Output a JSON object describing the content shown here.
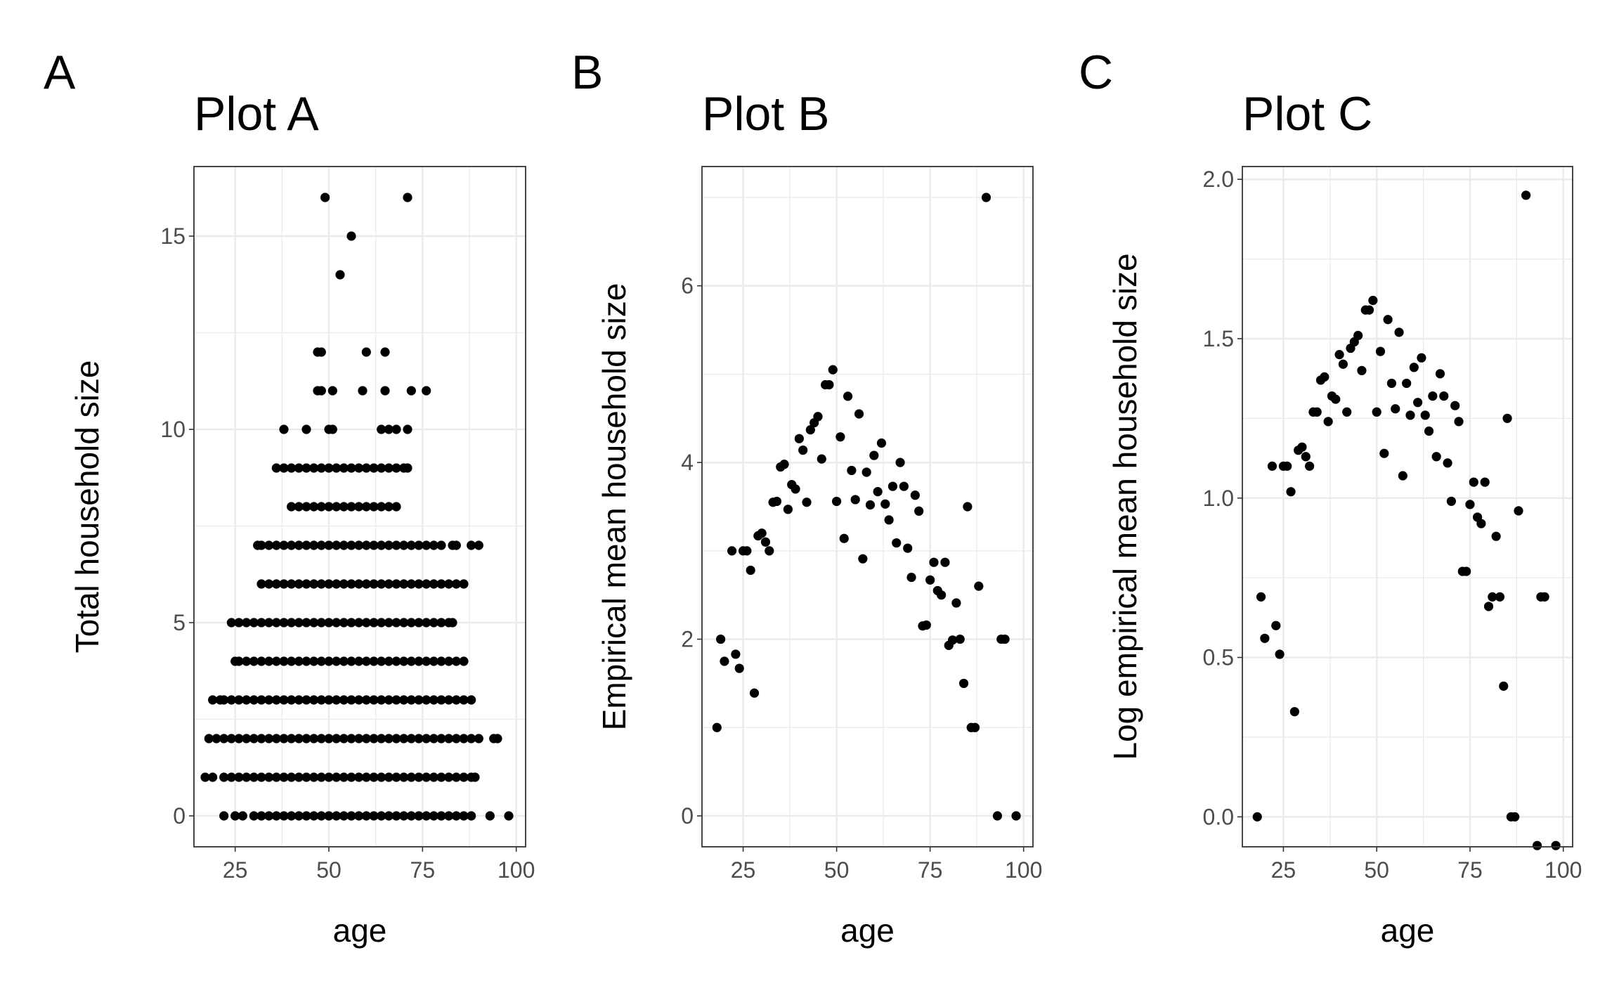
{
  "chart_data": [
    {
      "type": "scatter",
      "tag": "A",
      "title": "Plot A",
      "xlabel": "age",
      "ylabel": "Total household size",
      "color": "#000000",
      "grid": true,
      "xlim": [
        14,
        102.5
      ],
      "ylim": [
        -0.8,
        16.8
      ],
      "xticks": [
        25,
        50,
        75,
        100
      ],
      "yticks": [
        0,
        5,
        10,
        15
      ],
      "x": [
        22,
        25,
        27,
        30,
        32,
        34,
        36,
        38,
        40,
        42,
        44,
        46,
        48,
        50,
        52,
        54,
        56,
        58,
        60,
        62,
        64,
        66,
        68,
        70,
        72,
        74,
        76,
        78,
        80,
        82,
        84,
        86,
        88,
        93,
        98,
        17,
        19,
        22,
        24,
        26,
        28,
        30,
        32,
        34,
        36,
        38,
        40,
        42,
        44,
        46,
        48,
        50,
        52,
        54,
        56,
        58,
        60,
        62,
        64,
        66,
        68,
        70,
        72,
        74,
        76,
        78,
        80,
        82,
        84,
        86,
        88,
        89,
        18,
        20,
        22,
        24,
        26,
        28,
        30,
        32,
        34,
        36,
        38,
        40,
        42,
        44,
        46,
        48,
        50,
        52,
        54,
        56,
        58,
        60,
        62,
        64,
        66,
        68,
        70,
        72,
        74,
        76,
        78,
        80,
        82,
        84,
        86,
        88,
        90,
        94,
        95,
        19,
        21,
        22,
        24,
        26,
        28,
        30,
        32,
        34,
        36,
        38,
        40,
        42,
        44,
        46,
        48,
        50,
        52,
        54,
        56,
        58,
        60,
        62,
        64,
        66,
        68,
        70,
        72,
        74,
        76,
        78,
        80,
        82,
        84,
        86,
        88,
        25,
        26,
        28,
        30,
        32,
        34,
        36,
        38,
        40,
        42,
        44,
        46,
        48,
        50,
        52,
        54,
        56,
        58,
        60,
        62,
        64,
        66,
        68,
        70,
        72,
        74,
        76,
        78,
        80,
        82,
        84,
        86,
        24,
        26,
        28,
        30,
        32,
        34,
        36,
        38,
        40,
        42,
        44,
        46,
        48,
        50,
        52,
        54,
        56,
        58,
        60,
        62,
        64,
        66,
        68,
        70,
        72,
        74,
        76,
        78,
        80,
        82,
        83,
        32,
        34,
        36,
        38,
        40,
        42,
        44,
        46,
        48,
        50,
        52,
        54,
        56,
        58,
        60,
        62,
        64,
        66,
        68,
        70,
        72,
        74,
        76,
        78,
        80,
        82,
        84,
        86,
        31,
        32,
        34,
        36,
        38,
        40,
        42,
        44,
        46,
        48,
        50,
        52,
        54,
        56,
        58,
        60,
        62,
        64,
        66,
        68,
        70,
        72,
        74,
        76,
        78,
        80,
        83,
        84,
        88,
        90,
        40,
        42,
        44,
        46,
        48,
        50,
        52,
        54,
        56,
        58,
        60,
        62,
        64,
        66,
        68,
        36,
        38,
        40,
        42,
        44,
        46,
        48,
        50,
        52,
        54,
        56,
        58,
        60,
        62,
        64,
        66,
        68,
        70,
        71,
        38,
        44,
        50,
        51,
        64,
        66,
        68,
        71,
        47,
        48,
        51,
        59,
        65,
        72,
        76,
        47,
        48,
        60,
        65,
        53,
        56,
        49,
        71
      ],
      "y": [
        0,
        0,
        0,
        0,
        0,
        0,
        0,
        0,
        0,
        0,
        0,
        0,
        0,
        0,
        0,
        0,
        0,
        0,
        0,
        0,
        0,
        0,
        0,
        0,
        0,
        0,
        0,
        0,
        0,
        0,
        0,
        0,
        0,
        0,
        0,
        1,
        1,
        1,
        1,
        1,
        1,
        1,
        1,
        1,
        1,
        1,
        1,
        1,
        1,
        1,
        1,
        1,
        1,
        1,
        1,
        1,
        1,
        1,
        1,
        1,
        1,
        1,
        1,
        1,
        1,
        1,
        1,
        1,
        1,
        1,
        1,
        1,
        2,
        2,
        2,
        2,
        2,
        2,
        2,
        2,
        2,
        2,
        2,
        2,
        2,
        2,
        2,
        2,
        2,
        2,
        2,
        2,
        2,
        2,
        2,
        2,
        2,
        2,
        2,
        2,
        2,
        2,
        2,
        2,
        2,
        2,
        2,
        2,
        2,
        2,
        2,
        3,
        3,
        3,
        3,
        3,
        3,
        3,
        3,
        3,
        3,
        3,
        3,
        3,
        3,
        3,
        3,
        3,
        3,
        3,
        3,
        3,
        3,
        3,
        3,
        3,
        3,
        3,
        3,
        3,
        3,
        3,
        3,
        3,
        3,
        3,
        3,
        4,
        4,
        4,
        4,
        4,
        4,
        4,
        4,
        4,
        4,
        4,
        4,
        4,
        4,
        4,
        4,
        4,
        4,
        4,
        4,
        4,
        4,
        4,
        4,
        4,
        4,
        4,
        4,
        4,
        4,
        4,
        4,
        5,
        5,
        5,
        5,
        5,
        5,
        5,
        5,
        5,
        5,
        5,
        5,
        5,
        5,
        5,
        5,
        5,
        5,
        5,
        5,
        5,
        5,
        5,
        5,
        5,
        5,
        5,
        5,
        5,
        5,
        5,
        6,
        6,
        6,
        6,
        6,
        6,
        6,
        6,
        6,
        6,
        6,
        6,
        6,
        6,
        6,
        6,
        6,
        6,
        6,
        6,
        6,
        6,
        6,
        6,
        6,
        6,
        6,
        6,
        7,
        7,
        7,
        7,
        7,
        7,
        7,
        7,
        7,
        7,
        7,
        7,
        7,
        7,
        7,
        7,
        7,
        7,
        7,
        7,
        7,
        7,
        7,
        7,
        7,
        7,
        7,
        7,
        7,
        7,
        8,
        8,
        8,
        8,
        8,
        8,
        8,
        8,
        8,
        8,
        8,
        8,
        8,
        8,
        8,
        9,
        9,
        9,
        9,
        9,
        9,
        9,
        9,
        9,
        9,
        9,
        9,
        9,
        9,
        9,
        9,
        9,
        9,
        9,
        10,
        10,
        10,
        10,
        10,
        10,
        10,
        10,
        11,
        11,
        11,
        11,
        11,
        11,
        11,
        12,
        12,
        12,
        12,
        14,
        15,
        16,
        16
      ]
    },
    {
      "type": "scatter",
      "tag": "B",
      "title": "Plot B",
      "xlabel": "age",
      "ylabel": "Empirical mean household size",
      "color": "#000000",
      "grid": true,
      "xlim": [
        14,
        102.5
      ],
      "ylim": [
        -0.35,
        7.35
      ],
      "xticks": [
        25,
        50,
        75,
        100
      ],
      "yticks": [
        0,
        2,
        4,
        6
      ],
      "x": [
        18,
        19,
        20,
        22,
        23,
        24,
        25,
        26,
        27,
        28,
        29,
        30,
        31,
        32,
        33,
        34,
        35,
        36,
        37,
        38,
        39,
        40,
        41,
        42,
        43,
        44,
        45,
        46,
        47,
        48,
        49,
        50,
        51,
        52,
        53,
        54,
        55,
        56,
        57,
        58,
        59,
        60,
        61,
        62,
        63,
        64,
        65,
        66,
        67,
        68,
        69,
        70,
        71,
        72,
        73,
        74,
        75,
        76,
        77,
        78,
        79,
        80,
        81,
        82,
        83,
        84,
        85,
        86,
        87,
        88,
        90,
        93,
        94,
        95,
        98
      ],
      "y": [
        1,
        2,
        1.75,
        3,
        1.83,
        1.67,
        3,
        3,
        2.78,
        1.39,
        3.17,
        3.2,
        3.1,
        3.0,
        3.55,
        3.56,
        3.95,
        3.98,
        3.47,
        3.75,
        3.7,
        4.27,
        4.14,
        3.55,
        4.37,
        4.45,
        4.52,
        4.04,
        4.88,
        4.88,
        5.05,
        3.56,
        4.29,
        3.14,
        4.75,
        3.91,
        3.58,
        4.55,
        2.91,
        3.89,
        3.52,
        4.08,
        3.67,
        4.22,
        3.53,
        3.35,
        3.73,
        3.09,
        4.0,
        3.73,
        3.03,
        2.7,
        3.63,
        3.45,
        2.15,
        2.16,
        2.67,
        2.87,
        2.55,
        2.5,
        2.87,
        1.93,
        1.99,
        2.41,
        2.0,
        1.5,
        3.5,
        1,
        1,
        2.6,
        7,
        0,
        2,
        2,
        0
      ]
    },
    {
      "type": "scatter",
      "tag": "C",
      "title": "Plot C",
      "xlabel": "age",
      "ylabel": "Log empirical mean household size",
      "color": "#000000",
      "grid": true,
      "xlim": [
        14,
        102.5
      ],
      "ylim": [
        -0.094,
        2.04
      ],
      "xticks": [
        25,
        50,
        75,
        100
      ],
      "yticks": [
        {
          "value": 0,
          "label": "0.0"
        },
        {
          "value": 0.5,
          "label": "0.5"
        },
        {
          "value": 1,
          "label": "1.0"
        },
        {
          "value": 1.5,
          "label": "1.5"
        },
        {
          "value": 2,
          "label": "2.0"
        }
      ],
      "x": [
        18,
        19,
        20,
        22,
        23,
        24,
        25,
        26,
        27,
        28,
        29,
        30,
        31,
        32,
        33,
        34,
        35,
        36,
        37,
        38,
        39,
        40,
        41,
        42,
        43,
        44,
        45,
        46,
        47,
        48,
        49,
        50,
        51,
        52,
        53,
        54,
        55,
        56,
        57,
        58,
        59,
        60,
        61,
        62,
        63,
        64,
        65,
        66,
        67,
        68,
        69,
        70,
        71,
        72,
        73,
        74,
        75,
        76,
        77,
        78,
        79,
        80,
        81,
        82,
        83,
        84,
        85,
        86,
        87,
        88,
        90,
        93,
        94,
        95,
        98
      ],
      "y": [
        0,
        0.69,
        0.56,
        1.1,
        0.6,
        0.51,
        1.1,
        1.1,
        1.02,
        0.33,
        1.15,
        1.16,
        1.13,
        1.1,
        1.27,
        1.27,
        1.37,
        1.38,
        1.24,
        1.32,
        1.31,
        1.45,
        1.42,
        1.27,
        1.47,
        1.49,
        1.51,
        1.4,
        1.59,
        1.59,
        1.62,
        1.27,
        1.46,
        1.14,
        1.56,
        1.36,
        1.28,
        1.52,
        1.07,
        1.36,
        1.26,
        1.41,
        1.3,
        1.44,
        1.26,
        1.21,
        1.32,
        1.13,
        1.39,
        1.32,
        1.11,
        0.99,
        1.29,
        1.24,
        0.77,
        0.77,
        0.98,
        1.05,
        0.94,
        0.92,
        1.05,
        0.66,
        0.69,
        0.88,
        0.69,
        0.41,
        1.25,
        0,
        0,
        0.96,
        1.95,
        -0.09,
        0.69,
        0.69,
        -0.09
      ]
    }
  ]
}
